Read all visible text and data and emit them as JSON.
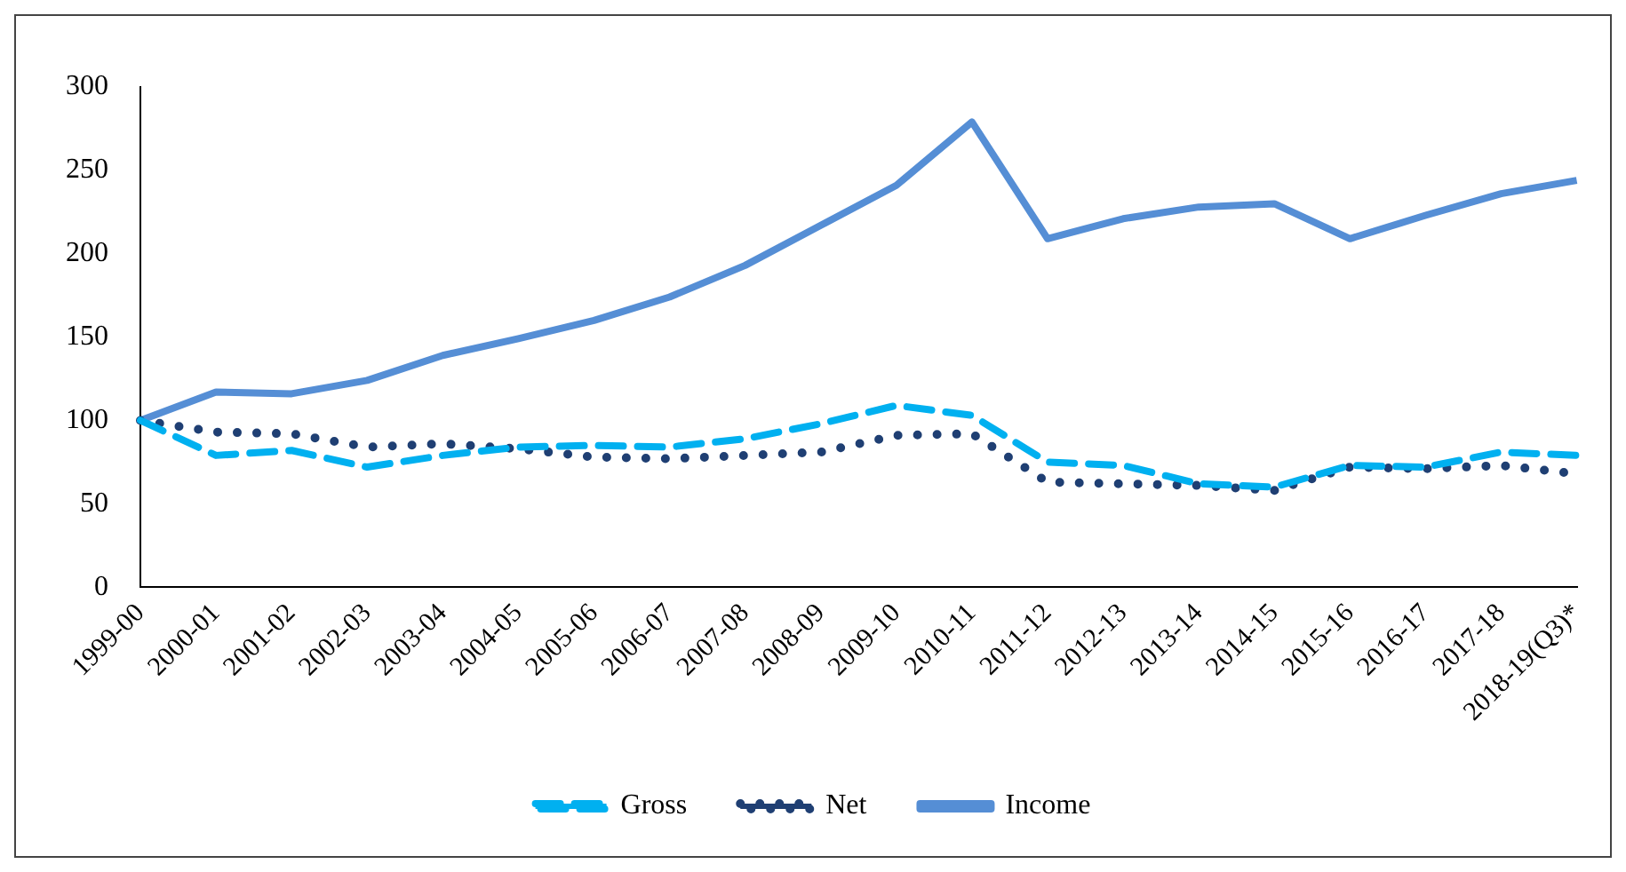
{
  "chart_data": {
    "type": "line",
    "categories": [
      "1999-00",
      "2000-01",
      "2001-02",
      "2002-03",
      "2003-04",
      "2004-05",
      "2005-06",
      "2006-07",
      "2007-08",
      "2008-09",
      "2009-10",
      "2010-11",
      "2011-12",
      "2012-13",
      "2013-14",
      "2014-15",
      "2015-16",
      "2016-17",
      "2017-18",
      "2018-19(Q3)*"
    ],
    "series": [
      {
        "name": "Gross",
        "color": "#00b0f0",
        "line_style": "dashed",
        "values": [
          100,
          79,
          82,
          72,
          79,
          84,
          85,
          84,
          89,
          98,
          109,
          103,
          75,
          73,
          62,
          60,
          73,
          72,
          81,
          79
        ]
      },
      {
        "name": "Net",
        "color": "#1f3f73",
        "line_style": "dotted",
        "values": [
          100,
          93,
          92,
          84,
          86,
          83,
          78,
          77,
          79,
          81,
          91,
          92,
          63,
          62,
          61,
          58,
          72,
          71,
          73,
          68
        ]
      },
      {
        "name": "Income",
        "color": "#558ed5",
        "line_style": "solid",
        "values": [
          100,
          117,
          116,
          124,
          139,
          149,
          160,
          174,
          193,
          217,
          241,
          279,
          209,
          221,
          228,
          230,
          209,
          223,
          236,
          244
        ]
      }
    ],
    "ylim": [
      0,
      300
    ],
    "yticks": [
      0,
      50,
      100,
      150,
      200,
      250,
      300
    ],
    "grid": false,
    "legend": "bottom",
    "marker": "none"
  }
}
